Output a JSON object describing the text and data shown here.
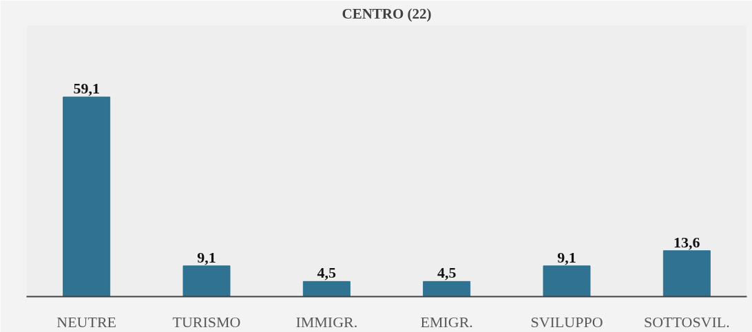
{
  "chart_data": {
    "type": "bar",
    "title": "CENTRO (22)",
    "categories": [
      "NEUTRE",
      "TURISMO",
      "IMMIGR.",
      "EMIGR.",
      "SVILUPPO",
      "SOTTOSVIL."
    ],
    "values": [
      59.1,
      9.1,
      4.5,
      4.5,
      9.1,
      13.6
    ],
    "value_labels": [
      "59,1",
      "9,1",
      "4,5",
      "4,5",
      "9,1",
      "13,6"
    ],
    "color": "#2f7291",
    "grid": false
  }
}
